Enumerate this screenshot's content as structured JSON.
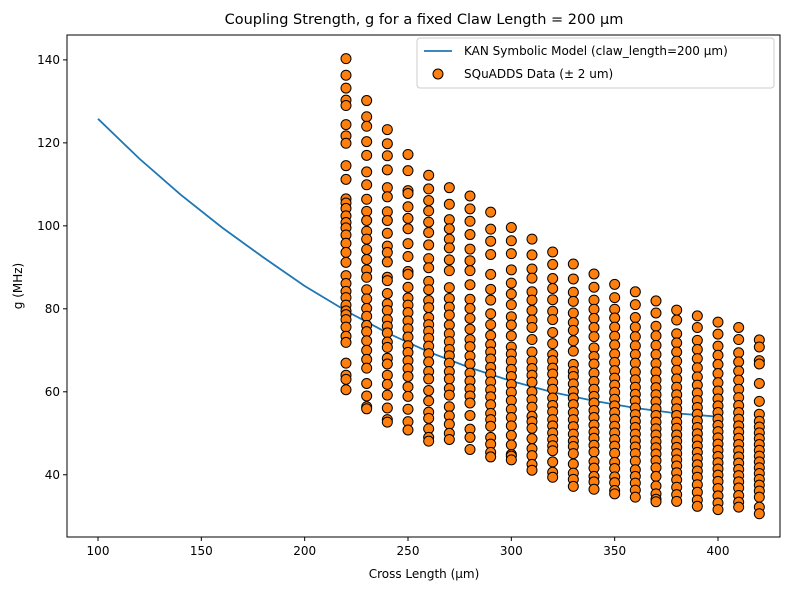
{
  "chart_data": {
    "type": "scatter",
    "title": "Coupling Strength, g for a fixed Claw Length = 200 μm",
    "xlabel": "Cross Length (μm)",
    "ylabel": "g (MHz)",
    "xlim": [
      85,
      430
    ],
    "ylim": [
      25,
      146
    ],
    "xticks": [
      100,
      150,
      200,
      250,
      300,
      350,
      400
    ],
    "yticks": [
      40,
      60,
      80,
      100,
      120,
      140
    ],
    "legend_position": "upper right",
    "grid": false,
    "colors": {
      "line": "#1f77b4",
      "points": "#ff7f0e",
      "point_edge": "#000000"
    },
    "series": [
      {
        "name": "KAN Symbolic Model (claw_length=200 μm)",
        "type": "line",
        "x": [
          100,
          120,
          140,
          160,
          180,
          200,
          220,
          240,
          260,
          280,
          300,
          320,
          340,
          360,
          380,
          400
        ],
        "y": [
          125.8,
          116.2,
          107.5,
          99.6,
          92.4,
          85.5,
          79.5,
          74.2,
          69.6,
          65.8,
          62.6,
          59.9,
          57.8,
          56.1,
          54.8,
          54.0
        ]
      },
      {
        "name": "SQuADDS Data (± 2 um)",
        "type": "scatter",
        "columns": [
          {
            "x": 220,
            "y": [
              140.3,
              136.3,
              133.2,
              130.3,
              129.0,
              124.4,
              121.7,
              119.9,
              114.5,
              111.2,
              106.5,
              105.5,
              104.2,
              102.4,
              100.8,
              99.5,
              97.8,
              95.8,
              93.6,
              91.2,
              88.0,
              86.1,
              84.2,
              82.7,
              80.9,
              79.5,
              78.6,
              77.4,
              75.6,
              73.4,
              71.9,
              66.9,
              64.0,
              63.0,
              60.5
            ]
          },
          {
            "x": 230,
            "y": [
              130.2,
              126.3,
              124.0,
              120.3,
              117.0,
              113.0,
              109.9,
              106.4,
              103.5,
              101.3,
              98.7,
              96.8,
              94.3,
              91.9,
              89.4,
              87.6,
              84.6,
              82.4,
              80.1,
              78.2,
              76.0,
              74.5,
              72.3,
              70.0,
              67.8,
              65.7,
              62.0,
              59.0,
              56.4,
              55.9
            ]
          },
          {
            "x": 240,
            "y": [
              123.2,
              119.8,
              116.9,
              113.5,
              109.2,
              107.0,
              103.4,
              101.3,
              98.2,
              95.1,
              93.6,
              91.3,
              87.6,
              86.8,
              83.7,
              81.2,
              79.6,
              77.4,
              75.8,
              74.2,
              72.0,
              70.7,
              68.1,
              66.7,
              64.0,
              61.8,
              59.2,
              56.1,
              53.3,
              52.7
            ]
          },
          {
            "x": 250,
            "y": [
              117.2,
              113.3,
              108.5,
              107.8,
              104.6,
              101.8,
              99.3,
              95.7,
              92.6,
              89.0,
              88.3,
              85.2,
              82.6,
              80.9,
              79.1,
              77.1,
              75.2,
              73.2,
              71.1,
              69.5,
              67.5,
              65.6,
              63.7,
              61.2,
              58.9,
              55.8,
              52.8,
              50.8
            ]
          },
          {
            "x": 260,
            "y": [
              112.2,
              108.9,
              106.1,
              103.6,
              100.9,
              98.4,
              95.4,
              92.1,
              89.9,
              86.6,
              84.6,
              82.0,
              80.3,
              77.9,
              76.2,
              74.6,
              72.9,
              71.0,
              69.2,
              67.2,
              64.9,
              63.1,
              60.3,
              57.8,
              55.1,
              53.6,
              51.1,
              49.0,
              48.1
            ]
          },
          {
            "x": 270,
            "y": [
              109.2,
              105.2,
              101.5,
              99.3,
              96.8,
              94.7,
              91.8,
              89.2,
              85.1,
              82.5,
              80.4,
              78.5,
              76.1,
              74.0,
              72.1,
              70.2,
              68.7,
              66.9,
              64.9,
              63.1,
              60.8,
              59.2,
              56.4,
              54.2,
              52.2,
              50.0,
              48.5
            ]
          },
          {
            "x": 280,
            "y": [
              107.2,
              104.1,
              101.1,
              97.9,
              94.4,
              91.6,
              89.2,
              85.8,
              82.3,
              80.1,
              77.7,
              75.1,
              72.6,
              70.9,
              68.6,
              66.7,
              64.5,
              62.6,
              60.7,
              59.0,
              57.3,
              54.3,
              51.0,
              49.0,
              46.1
            ]
          },
          {
            "x": 290,
            "y": [
              103.3,
              99.2,
              96.3,
              93.1,
              88.3,
              84.7,
              82.1,
              78.8,
              76.2,
              73.6,
              71.4,
              69.6,
              67.9,
              65.9,
              64.3,
              62.4,
              60.5,
              58.8,
              56.9,
              54.8,
              53.3,
              51.7,
              49.0,
              47.4,
              45.4,
              44.3
            ]
          },
          {
            "x": 300,
            "y": [
              99.6,
              96.4,
              93.3,
              89.4,
              86.2,
              83.6,
              81.0,
              78.1,
              76.1,
              73.5,
              70.8,
              69.1,
              67.4,
              65.4,
              63.7,
              61.8,
              59.9,
              57.9,
              55.8,
              53.8,
              51.8,
              49.5,
              47.2,
              44.9,
              44.5,
              43.6
            ]
          },
          {
            "x": 310,
            "y": [
              96.8,
              93.0,
              89.6,
              87.4,
              84.1,
              82.1,
              79.6,
              77.3,
              75.5,
              72.6,
              69.6,
              67.4,
              65.6,
              64.0,
              62.3,
              60.0,
              58.1,
              56.3,
              54.1,
              52.8,
              51.2,
              48.7,
              46.3,
              44.6,
              42.5,
              41.1
            ]
          },
          {
            "x": 320,
            "y": [
              93.7,
              90.7,
              87.3,
              84.9,
              82.2,
              79.4,
              77.4,
              74.3,
              71.6,
              69.0,
              67.5,
              65.7,
              64.3,
              62.3,
              60.6,
              58.5,
              56.7,
              55.2,
              53.3,
              51.8,
              50.1,
              48.5,
              47.0,
              45.8,
              43.1,
              40.6,
              39.4
            ]
          },
          {
            "x": 330,
            "y": [
              90.8,
              87.2,
              84.0,
              81.8,
              79.0,
              76.7,
              74.8,
              72.3,
              69.8,
              66.6,
              64.9,
              63.7,
              61.9,
              60.1,
              58.5,
              56.9,
              55.0,
              53.3,
              51.6,
              49.8,
              48.1,
              46.8,
              45.1,
              42.6,
              40.4,
              38.9,
              37.2
            ]
          },
          {
            "x": 340,
            "y": [
              88.4,
              85.2,
              82.1,
              79.9,
              77.7,
              75.5,
              73.3,
              70.6,
              68.5,
              66.7,
              64.5,
              62.5,
              60.6,
              58.9,
              57.3,
              55.5,
              53.8,
              52.0,
              50.3,
              48.8,
              47.1,
              45.5,
              43.2,
              41.6,
              39.6,
              38.3,
              36.5
            ]
          },
          {
            "x": 350,
            "y": [
              85.9,
              82.7,
              79.9,
              77.8,
              75.6,
              73.4,
              71.3,
              69.1,
              67.1,
              65.1,
              63.3,
              61.6,
              59.9,
              58.2,
              56.6,
              55.0,
              53.4,
              51.7,
              50.1,
              48.5,
              46.9,
              45.2,
              43.0,
              41.5,
              39.5,
              38.1,
              36.2,
              35.4
            ]
          },
          {
            "x": 360,
            "y": [
              84.1,
              81.0,
              77.9,
              75.6,
              73.3,
              71.1,
              69.0,
              66.9,
              64.8,
              62.9,
              61.1,
              59.4,
              57.8,
              56.1,
              54.5,
              52.9,
              51.4,
              49.8,
              48.2,
              46.7,
              45.1,
              43.3,
              41.2,
              39.6,
              38.0,
              36.3,
              34.6
            ]
          },
          {
            "x": 370,
            "y": [
              81.9,
              79.0,
              75.8,
              73.5,
              71.2,
              69.0,
              66.8,
              64.8,
              62.8,
              61.0,
              59.3,
              57.6,
              55.9,
              54.3,
              52.7,
              51.1,
              49.6,
              48.0,
              46.5,
              45.0,
              43.4,
              41.7,
              39.6,
              37.3,
              35.4,
              34.1,
              33.5
            ]
          },
          {
            "x": 380,
            "y": [
              79.7,
              77.3,
              74.0,
              71.8,
              69.6,
              67.4,
              65.2,
              63.1,
              61.1,
              59.3,
              57.6,
              55.9,
              54.3,
              52.7,
              51.2,
              49.6,
              48.1,
              46.6,
              45.1,
              43.6,
              42.1,
              40.5,
              38.8,
              37.0,
              35.2,
              33.6
            ]
          },
          {
            "x": 390,
            "y": [
              78.3,
              75.5,
              72.4,
              70.2,
              68.0,
              65.8,
              63.6,
              61.6,
              59.7,
              57.9,
              56.2,
              54.6,
              53.0,
              51.4,
              49.9,
              48.4,
              46.9,
              45.4,
              43.9,
              42.4,
              40.9,
              39.4,
              37.6,
              35.8,
              33.9,
              32.4
            ]
          },
          {
            "x": 400,
            "y": [
              76.8,
              73.9,
              71.0,
              68.8,
              66.6,
              64.4,
              62.2,
              60.2,
              58.3,
              56.6,
              55.0,
              53.4,
              51.9,
              50.4,
              48.9,
              47.4,
              45.9,
              44.4,
              42.9,
              41.4,
              39.9,
              38.4,
              36.7,
              34.9,
              33.2,
              31.6
            ]
          },
          {
            "x": 410,
            "y": [
              75.5,
              72.6,
              69.4,
              67.2,
              65.0,
              62.8,
              60.6,
              58.6,
              56.7,
              55.0,
              53.4,
              51.8,
              50.3,
              48.8,
              47.3,
              45.8,
              44.3,
              42.8,
              41.3,
              39.8,
              38.3,
              36.8,
              35.0,
              33.4,
              32.2
            ]
          },
          {
            "x": 420,
            "y": [
              72.5,
              70.8,
              67.5,
              66.7,
              62.0,
              57.7,
              54.6,
              52.9,
              51.5,
              50.1,
              48.7,
              47.3,
              45.9,
              44.5,
              43.1,
              41.7,
              40.3,
              38.9,
              37.5,
              36.1,
              34.6,
              32.2,
              30.6
            ]
          }
        ]
      }
    ]
  }
}
